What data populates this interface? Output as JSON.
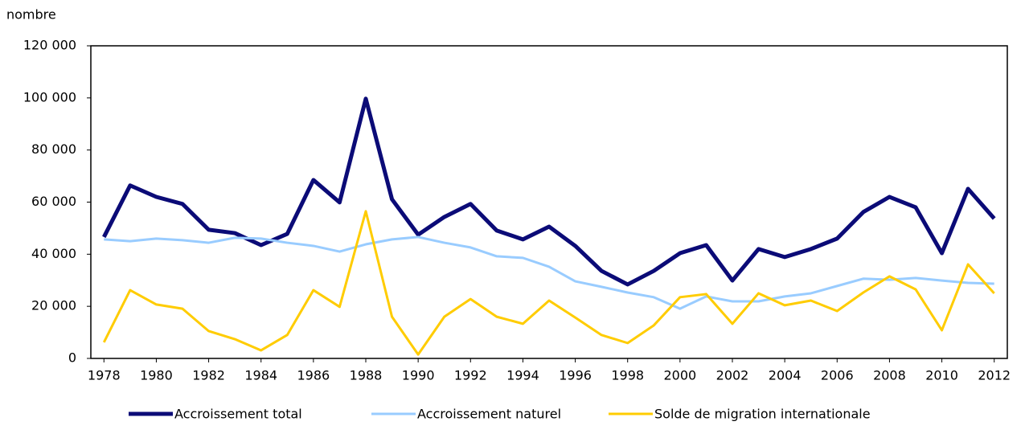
{
  "chart_data": {
    "type": "line",
    "ylabel": "nombre",
    "x": [
      1978,
      1979,
      1980,
      1981,
      1982,
      1983,
      1984,
      1985,
      1986,
      1987,
      1988,
      1989,
      1990,
      1991,
      1992,
      1993,
      1994,
      1995,
      1996,
      1997,
      1998,
      1999,
      2000,
      2001,
      2002,
      2003,
      2004,
      2005,
      2006,
      2007,
      2008,
      2009,
      2010,
      2011,
      2012
    ],
    "xlim": [
      1977.5,
      2012.5
    ],
    "xticks": [
      1978,
      1980,
      1982,
      1984,
      1986,
      1988,
      1990,
      1992,
      1994,
      1996,
      1998,
      2000,
      2002,
      2004,
      2006,
      2008,
      2010,
      2012
    ],
    "ylim": [
      0,
      120000
    ],
    "yticks": [
      0,
      {
        "value": 20000,
        "label": "20 000"
      },
      {
        "value": 40000,
        "label": "40 000"
      },
      {
        "value": 60000,
        "label": "60 000"
      },
      {
        "value": 80000,
        "label": "80 000"
      },
      {
        "value": 100000,
        "label": "100 000"
      },
      {
        "value": 120000,
        "label": "120 000"
      }
    ],
    "legend": "bottom",
    "series": [
      {
        "name": "Accroissement total",
        "color": "#0b0b77",
        "values": [
          46600,
          66400,
          62000,
          59300,
          49400,
          48100,
          43500,
          47800,
          68500,
          59900,
          99700,
          61100,
          47500,
          54300,
          59300,
          49100,
          45700,
          50600,
          43200,
          33600,
          28400,
          33600,
          40400,
          43500,
          29900,
          42000,
          38900,
          42000,
          46000,
          56200,
          62000,
          58000,
          40400,
          65100,
          53700
        ]
      },
      {
        "name": "Accroissement naturel",
        "color": "#99ccff",
        "values": [
          45700,
          45000,
          46000,
          45400,
          44400,
          46300,
          46000,
          44400,
          43200,
          41000,
          43800,
          45700,
          46600,
          44400,
          42600,
          39200,
          38600,
          35200,
          29600,
          27500,
          25300,
          23500,
          19100,
          23800,
          21900,
          21900,
          23800,
          25000,
          27800,
          30600,
          30200,
          30900,
          29900,
          29000,
          28700
        ]
      },
      {
        "name": "Solde de migration internationale",
        "color": "#ffcc00",
        "values": [
          6200,
          26200,
          20700,
          19100,
          10500,
          7400,
          3100,
          9000,
          26200,
          19800,
          56500,
          16000,
          1500,
          16000,
          22800,
          16000,
          13300,
          22200,
          15700,
          9000,
          5900,
          12700,
          23500,
          24700,
          13300,
          25000,
          20400,
          22200,
          18200,
          25300,
          31500,
          26500,
          10800,
          36100,
          25000
        ]
      }
    ]
  }
}
